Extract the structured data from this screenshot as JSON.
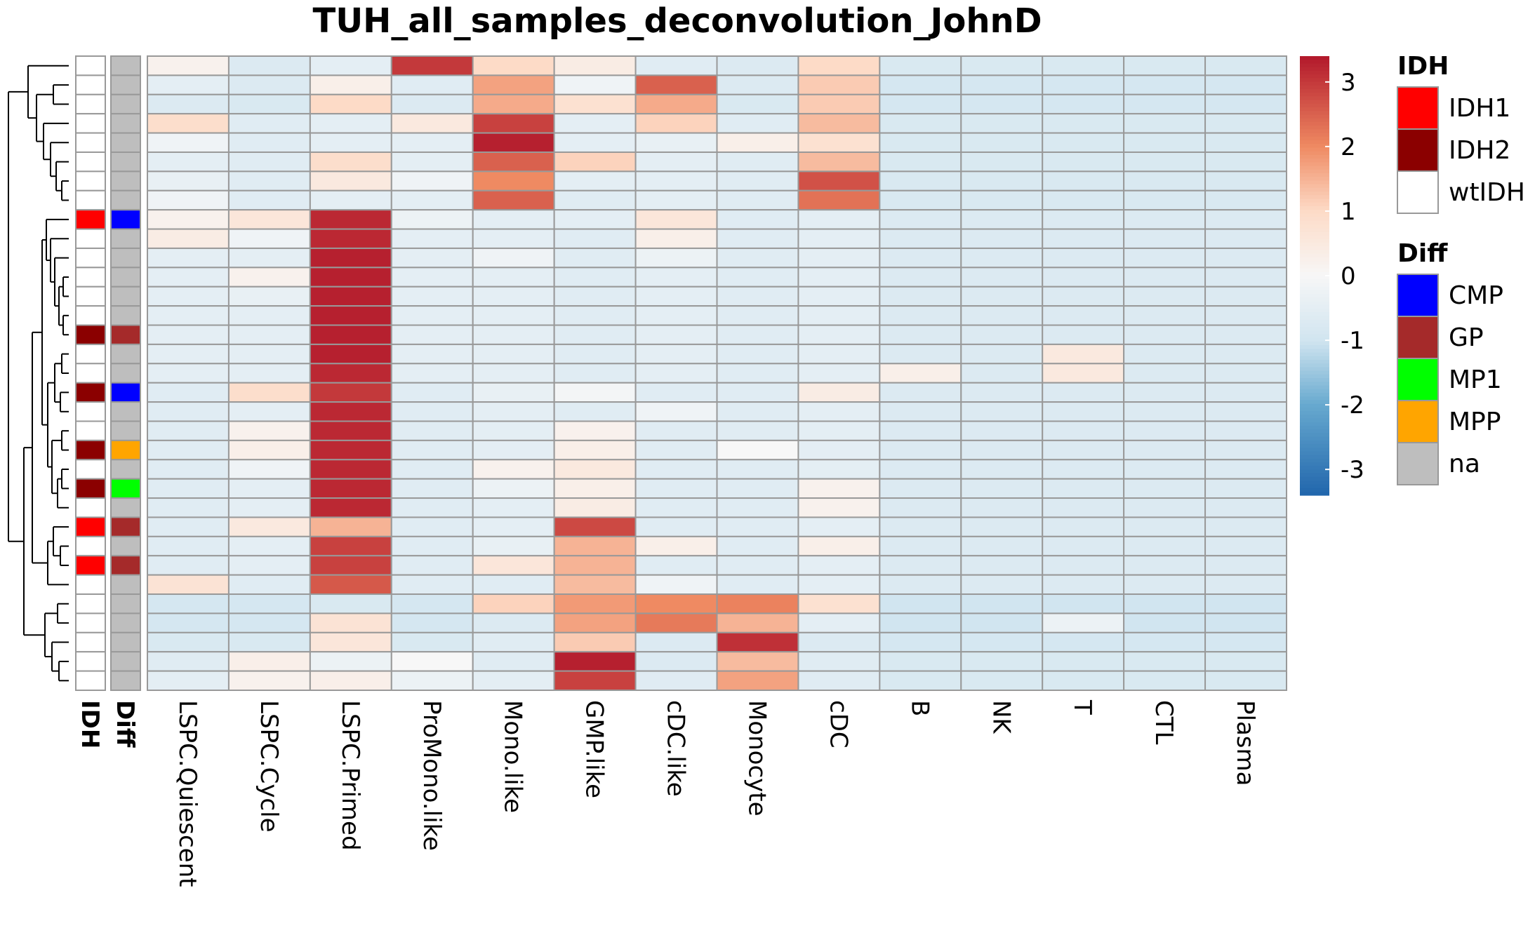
{
  "chart_data": {
    "type": "heatmap",
    "title": "TUH_all_samples_deconvolution_JohnD",
    "columns": [
      "LSPC.Quiescent",
      "LSPC.Cycle",
      "LSPC.Primed",
      "ProMono.like",
      "Mono.like",
      "GMP.like",
      "cDC.like",
      "Monocyte",
      "cDC",
      "B",
      "NK",
      "T",
      "CTL",
      "Plasma"
    ],
    "annotation_columns": [
      "IDH",
      "Diff"
    ],
    "annotations": {
      "IDH": [
        "wtIDH",
        "wtIDH",
        "wtIDH",
        "wtIDH",
        "wtIDH",
        "wtIDH",
        "wtIDH",
        "wtIDH",
        "IDH1",
        "wtIDH",
        "wtIDH",
        "wtIDH",
        "wtIDH",
        "wtIDH",
        "IDH2",
        "wtIDH",
        "wtIDH",
        "IDH2",
        "wtIDH",
        "wtIDH",
        "IDH2",
        "wtIDH",
        "IDH2",
        "wtIDH",
        "IDH1",
        "wtIDH",
        "IDH1",
        "wtIDH",
        "wtIDH",
        "wtIDH",
        "wtIDH",
        "wtIDH",
        "wtIDH"
      ],
      "Diff": [
        "na",
        "na",
        "na",
        "na",
        "na",
        "na",
        "na",
        "na",
        "CMP",
        "na",
        "na",
        "na",
        "na",
        "na",
        "GP",
        "na",
        "na",
        "CMP",
        "na",
        "na",
        "MPP",
        "na",
        "MP1",
        "na",
        "GP",
        "na",
        "GP",
        "na",
        "na",
        "na",
        "na",
        "na",
        "na"
      ]
    },
    "values": [
      [
        0.2,
        -0.7,
        -0.5,
        3.0,
        1.0,
        0.4,
        -0.6,
        -0.7,
        1.0,
        -0.8,
        -0.8,
        -0.8,
        -0.8,
        -0.8
      ],
      [
        -0.5,
        -0.7,
        0.3,
        -0.6,
        1.7,
        -0.2,
        2.5,
        -0.7,
        1.2,
        -0.9,
        -0.9,
        -0.9,
        -0.9,
        -0.9
      ],
      [
        -0.7,
        -0.8,
        1.0,
        -0.7,
        1.6,
        0.8,
        1.6,
        -0.8,
        1.2,
        -0.9,
        -0.9,
        -0.9,
        -0.9,
        -0.9
      ],
      [
        0.9,
        -0.6,
        -0.5,
        0.5,
        2.9,
        -0.5,
        1.1,
        -0.6,
        1.4,
        -0.8,
        -0.8,
        -0.8,
        -0.8,
        -0.8
      ],
      [
        -0.2,
        -0.6,
        -0.5,
        -0.5,
        3.3,
        -0.5,
        -0.4,
        0.3,
        0.8,
        -0.8,
        -0.8,
        -0.8,
        -0.8,
        -0.8
      ],
      [
        -0.5,
        -0.6,
        0.9,
        -0.5,
        2.5,
        1.1,
        -0.5,
        -0.6,
        1.4,
        -0.8,
        -0.8,
        -0.8,
        -0.8,
        -0.8
      ],
      [
        -0.4,
        -0.6,
        0.5,
        -0.2,
        2.0,
        -0.5,
        -0.5,
        -0.6,
        2.7,
        -0.8,
        -0.8,
        -0.8,
        -0.8,
        -0.8
      ],
      [
        -0.2,
        -0.6,
        -0.5,
        -0.5,
        2.5,
        -0.6,
        -0.5,
        -0.6,
        2.3,
        -0.8,
        -0.8,
        -0.8,
        -0.8,
        -0.8
      ],
      [
        0.2,
        0.6,
        3.2,
        -0.3,
        -0.5,
        -0.5,
        0.6,
        -0.6,
        -0.5,
        -0.7,
        -0.7,
        -0.7,
        -0.7,
        -0.7
      ],
      [
        0.4,
        -0.2,
        3.2,
        -0.5,
        -0.5,
        -0.6,
        0.3,
        -0.6,
        -0.5,
        -0.7,
        -0.7,
        -0.7,
        -0.7,
        -0.7
      ],
      [
        -0.5,
        -0.5,
        3.3,
        -0.5,
        -0.2,
        -0.6,
        -0.3,
        -0.6,
        -0.5,
        -0.7,
        -0.7,
        -0.7,
        -0.7,
        -0.7
      ],
      [
        -0.5,
        0.2,
        3.3,
        -0.5,
        -0.5,
        -0.6,
        -0.5,
        -0.6,
        -0.5,
        -0.7,
        -0.7,
        -0.7,
        -0.7,
        -0.7
      ],
      [
        -0.5,
        -0.4,
        3.3,
        -0.5,
        -0.5,
        -0.6,
        -0.5,
        -0.6,
        -0.5,
        -0.7,
        -0.7,
        -0.7,
        -0.7,
        -0.7
      ],
      [
        -0.5,
        -0.5,
        3.3,
        -0.5,
        -0.5,
        -0.6,
        -0.5,
        -0.6,
        -0.5,
        -0.7,
        -0.7,
        -0.7,
        -0.7,
        -0.7
      ],
      [
        -0.5,
        -0.5,
        3.3,
        -0.5,
        -0.5,
        -0.6,
        -0.5,
        -0.6,
        -0.5,
        -0.7,
        -0.7,
        -0.7,
        -0.7,
        -0.7
      ],
      [
        -0.5,
        -0.5,
        3.3,
        -0.5,
        -0.5,
        -0.6,
        -0.5,
        -0.6,
        -0.5,
        -0.7,
        -0.7,
        0.5,
        -0.7,
        -0.7
      ],
      [
        -0.5,
        -0.5,
        3.2,
        -0.5,
        -0.5,
        -0.6,
        -0.5,
        -0.6,
        -0.5,
        0.3,
        -0.7,
        0.5,
        -0.7,
        -0.7
      ],
      [
        -0.6,
        0.9,
        3.0,
        -0.6,
        -0.4,
        -0.1,
        -0.6,
        -0.6,
        0.4,
        -0.7,
        -0.7,
        -0.7,
        -0.7,
        -0.7
      ],
      [
        -0.6,
        -0.5,
        3.2,
        -0.6,
        -0.5,
        -0.6,
        -0.2,
        -0.6,
        -0.5,
        -0.7,
        -0.7,
        -0.7,
        -0.7,
        -0.7
      ],
      [
        -0.6,
        0.2,
        3.2,
        -0.6,
        -0.5,
        0.2,
        -0.6,
        -0.6,
        -0.5,
        -0.7,
        -0.7,
        -0.7,
        -0.7,
        -0.7
      ],
      [
        -0.6,
        0.3,
        3.2,
        -0.6,
        -0.5,
        0.3,
        -0.6,
        0.0,
        -0.5,
        -0.7,
        -0.7,
        -0.7,
        -0.7,
        -0.7
      ],
      [
        -0.6,
        -0.2,
        3.2,
        -0.6,
        0.2,
        0.5,
        -0.6,
        -0.6,
        -0.5,
        -0.7,
        -0.7,
        -0.7,
        -0.7,
        -0.7
      ],
      [
        -0.6,
        -0.5,
        3.2,
        -0.6,
        -0.3,
        0.3,
        -0.6,
        -0.6,
        0.2,
        -0.7,
        -0.7,
        -0.7,
        -0.7,
        -0.7
      ],
      [
        -0.6,
        -0.5,
        3.2,
        -0.6,
        -0.5,
        0.4,
        -0.6,
        -0.6,
        0.2,
        -0.7,
        -0.7,
        -0.7,
        -0.7,
        -0.7
      ],
      [
        -0.6,
        0.5,
        1.5,
        -0.6,
        -0.5,
        2.8,
        -0.6,
        -0.6,
        -0.5,
        -0.7,
        -0.7,
        -0.7,
        -0.7,
        -0.7
      ],
      [
        -0.6,
        -0.5,
        2.9,
        -0.6,
        -0.4,
        1.5,
        0.3,
        -0.6,
        0.3,
        -0.7,
        -0.7,
        -0.7,
        -0.7,
        -0.7
      ],
      [
        -0.6,
        -0.5,
        2.9,
        -0.6,
        0.6,
        1.5,
        -0.6,
        -0.6,
        -0.5,
        -0.7,
        -0.7,
        -0.7,
        -0.7,
        -0.7
      ],
      [
        0.7,
        -0.6,
        2.6,
        -0.6,
        -0.6,
        1.4,
        -0.2,
        -0.6,
        -0.5,
        -0.7,
        -0.7,
        -0.7,
        -0.7,
        -0.7
      ],
      [
        -0.9,
        -0.9,
        -0.8,
        -0.9,
        1.1,
        1.8,
        2.0,
        2.1,
        0.8,
        -1.0,
        -1.0,
        -1.0,
        -1.0,
        -1.0
      ],
      [
        -0.9,
        -0.9,
        0.7,
        -0.9,
        -0.7,
        1.7,
        2.2,
        1.5,
        -0.5,
        -1.0,
        -1.0,
        -0.3,
        -1.0,
        -1.0
      ],
      [
        -0.8,
        -0.8,
        0.6,
        -0.8,
        -0.6,
        1.2,
        -0.7,
        3.1,
        -0.7,
        -0.9,
        -0.9,
        -0.9,
        -0.9,
        -0.9
      ],
      [
        -0.6,
        0.3,
        -0.3,
        0.0,
        -0.6,
        3.3,
        -0.7,
        1.4,
        -0.6,
        -0.8,
        -0.8,
        -0.8,
        -0.8,
        -0.8
      ],
      [
        -0.5,
        0.2,
        0.3,
        -0.3,
        -0.5,
        2.9,
        -0.6,
        1.7,
        -0.6,
        -0.8,
        -0.8,
        -0.8,
        -0.8,
        -0.8
      ]
    ],
    "color_scale": {
      "min": -3.4,
      "max": 3.4,
      "stops": [
        {
          "v": -3.4,
          "color": "#2166AC"
        },
        {
          "v": -2.0,
          "color": "#67A9CF"
        },
        {
          "v": -1.0,
          "color": "#D1E5F0"
        },
        {
          "v": 0.0,
          "color": "#F7F7F7"
        },
        {
          "v": 1.0,
          "color": "#FDDBC7"
        },
        {
          "v": 2.0,
          "color": "#EF8A62"
        },
        {
          "v": 3.4,
          "color": "#B2182B"
        }
      ],
      "ticks": [
        3,
        2,
        1,
        0,
        -1,
        -2,
        -3
      ]
    },
    "legends": [
      {
        "title": "IDH",
        "items": [
          {
            "label": "IDH1",
            "color": "#FF0000"
          },
          {
            "label": "IDH2",
            "color": "#8B0000"
          },
          {
            "label": "wtIDH",
            "color": "#FFFFFF"
          }
        ]
      },
      {
        "title": "Diff",
        "items": [
          {
            "label": "CMP",
            "color": "#0000FF"
          },
          {
            "label": "GP",
            "color": "#A52A2A"
          },
          {
            "label": "MP1",
            "color": "#00FF00"
          },
          {
            "label": "MPP",
            "color": "#FFA500"
          },
          {
            "label": "na",
            "color": "#BEBEBE"
          }
        ]
      }
    ],
    "grid": true,
    "dendrogram": "rows",
    "legend_position": "right"
  }
}
